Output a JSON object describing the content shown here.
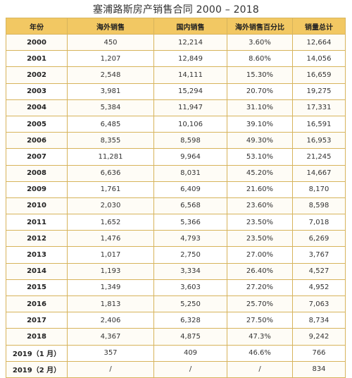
{
  "title": "塞浦路斯房产销售合同 2000 – 2018",
  "table": {
    "headers": [
      "年份",
      "海外销售",
      "国内销售",
      "海外销售百分比",
      "销量总计"
    ],
    "rows": [
      [
        "2000",
        "450",
        "12,214",
        "3.60%",
        "12,664"
      ],
      [
        "2001",
        "1,207",
        "12,849",
        "8.60%",
        "14,056"
      ],
      [
        "2002",
        "2,548",
        "14,111",
        "15.30%",
        "16,659"
      ],
      [
        "2003",
        "3,981",
        "15,294",
        "20.70%",
        "19,275"
      ],
      [
        "2004",
        "5,384",
        "11,947",
        "31.10%",
        "17,331"
      ],
      [
        "2005",
        "6,485",
        "10,106",
        "39.10%",
        "16,591"
      ],
      [
        "2006",
        "8,355",
        "8,598",
        "49.30%",
        "16,953"
      ],
      [
        "2007",
        "11,281",
        "9,964",
        "53.10%",
        "21,245"
      ],
      [
        "2008",
        "6,636",
        "8,031",
        "45.20%",
        "14,667"
      ],
      [
        "2009",
        "1,761",
        "6,409",
        "21.60%",
        "8,170"
      ],
      [
        "2010",
        "2,030",
        "6,568",
        "23.60%",
        "8,598"
      ],
      [
        "2011",
        "1,652",
        "5,366",
        "23.50%",
        "7,018"
      ],
      [
        "2012",
        "1,476",
        "4,793",
        "23.50%",
        "6,269"
      ],
      [
        "2013",
        "1,017",
        "2,750",
        "27.00%",
        "3,767"
      ],
      [
        "2014",
        "1,193",
        "3,334",
        "26.40%",
        "4,527"
      ],
      [
        "2015",
        "1,349",
        "3,603",
        "27.20%",
        "4,952"
      ],
      [
        "2016",
        "1,813",
        "5,250",
        "25.70%",
        "7,063"
      ],
      [
        "2017",
        "2,406",
        "6,328",
        "27.50%",
        "8,734"
      ],
      [
        "2018",
        "4,367",
        "4,875",
        "47.3%",
        "9,242"
      ],
      [
        "2019（1 月）",
        "357",
        "409",
        "46.6%",
        "766"
      ],
      [
        "2019（2 月）",
        "/",
        "/",
        "/",
        "834"
      ]
    ]
  }
}
